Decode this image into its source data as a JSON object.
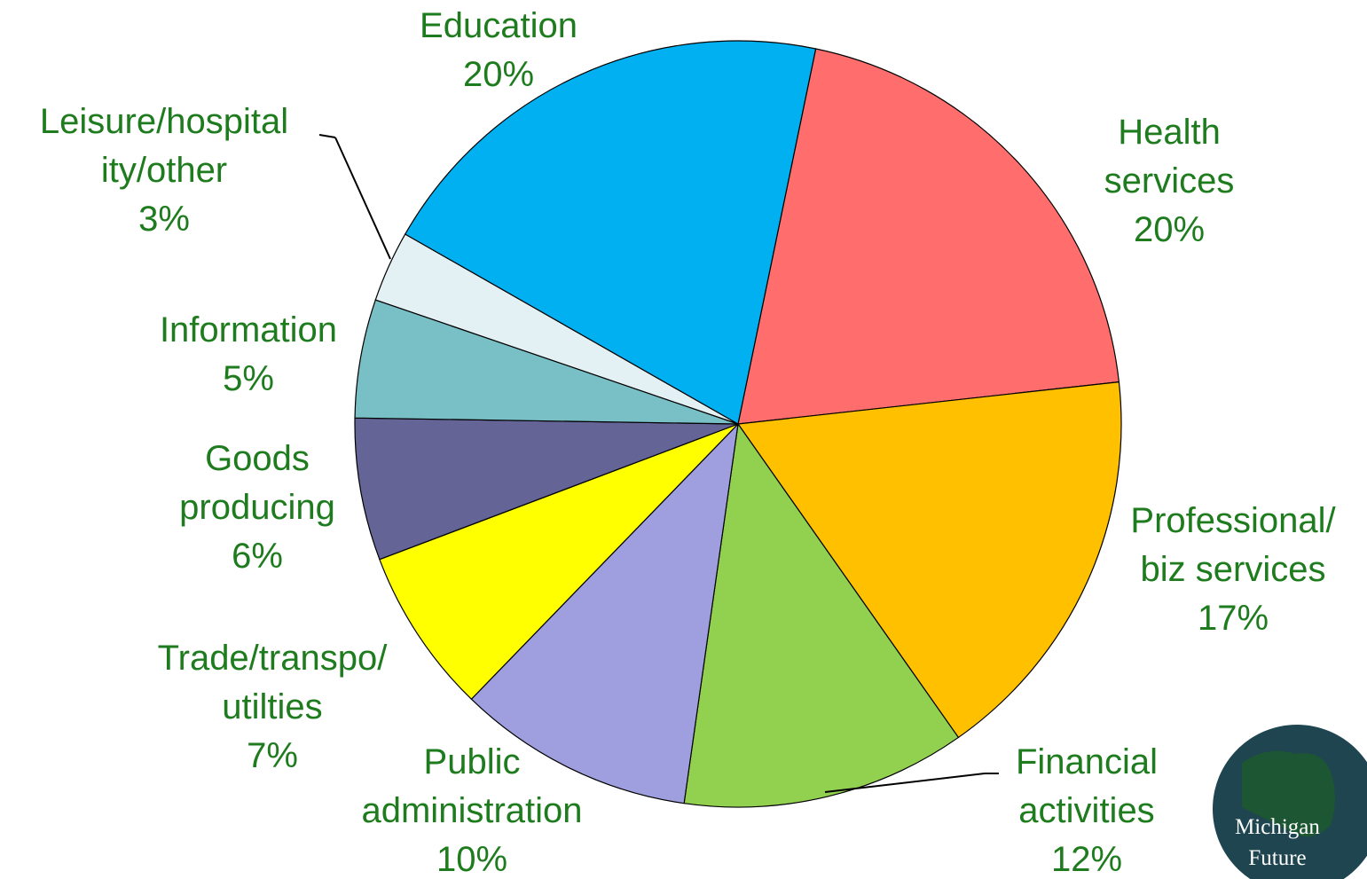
{
  "chart_data": {
    "type": "pie",
    "categories": [
      "Health services",
      "Professional/\nbiz services",
      "Financial\nactivities",
      "Public\nadministration",
      "Trade/transpo/\nutilties",
      "Goods\nproducing",
      "Information",
      "Leisure/hospital\nity/other",
      "Education"
    ],
    "values": [
      20,
      17,
      12,
      10,
      7,
      6,
      5,
      3,
      20
    ],
    "value_labels": [
      "20%",
      "17%",
      "12%",
      "10%",
      "7%",
      "6%",
      "5%",
      "3%",
      "20%"
    ],
    "colors": [
      "#ff6d6d",
      "#ffc000",
      "#92d050",
      "#9f9fdf",
      "#ffff00",
      "#646496",
      "#78bfc6",
      "#e4f1f4",
      "#00b0f0"
    ]
  },
  "logo": {
    "line1": "Michigan",
    "line2": "Future"
  }
}
